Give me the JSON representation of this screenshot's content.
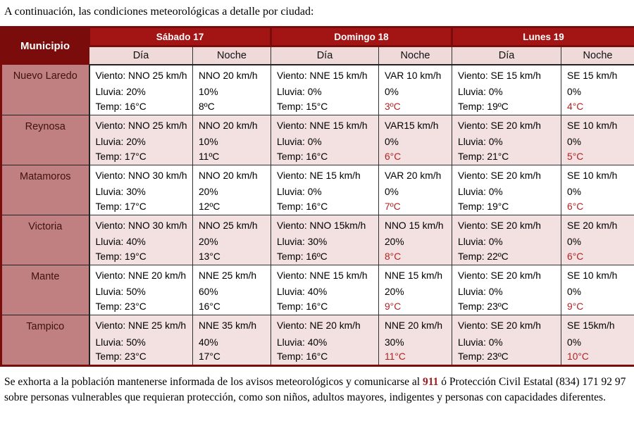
{
  "title": "A continuación, las condiciones meteorológicas a detalle por ciudad:",
  "colors": {
    "dark_red": "#7a0c0c",
    "band_red": "#a31515",
    "subheader_pink": "#efd9d9",
    "muni_rose": "#c08081",
    "zebra_pink": "#f3e0e0",
    "temp_red": "#b22222",
    "emergency_red": "#9e1b1b",
    "grid": "#333333"
  },
  "table": {
    "municipio_header": "Municipio",
    "day_headers": [
      "Sábado 17",
      "Domingo 18",
      "Lunes 19"
    ],
    "subheaders": [
      "Día",
      "Noche"
    ],
    "rows": [
      {
        "municipio": "Nuevo Laredo",
        "cells": [
          {
            "lines": [
              "Viento: NNO 25 km/h",
              "Lluvia: 20%",
              "Temp: 16°C"
            ],
            "temp_red": false
          },
          {
            "lines": [
              "NNO 20 km/h",
              "10%",
              "8ºC"
            ],
            "temp_red": false
          },
          {
            "lines": [
              "Viento: NNE 15 km/h",
              "Lluvia: 0%",
              "Temp: 15°C"
            ],
            "temp_red": false
          },
          {
            "lines": [
              "VAR 10 km/h",
              "0%",
              "3ºC"
            ],
            "temp_red": true
          },
          {
            "lines": [
              "Viento: SE 15 km/h",
              "Lluvia: 0%",
              "Temp: 19ºC"
            ],
            "temp_red": false
          },
          {
            "lines": [
              "SE 15 km/h",
              "0%",
              "4°C"
            ],
            "temp_red": true
          }
        ]
      },
      {
        "municipio": "Reynosa",
        "cells": [
          {
            "lines": [
              "Viento: NNO 25 km/h",
              "Lluvia: 20%",
              "Temp: 17°C"
            ],
            "temp_red": false
          },
          {
            "lines": [
              "NNO 20 km/h",
              "10%",
              "11ºC"
            ],
            "temp_red": false
          },
          {
            "lines": [
              "Viento: NNE 15 km/h",
              "Lluvia: 0%",
              "Temp: 16°C"
            ],
            "temp_red": false
          },
          {
            "lines": [
              "VAR15 km/h",
              "0%",
              "6°C"
            ],
            "temp_red": true
          },
          {
            "lines": [
              "Viento: SE 20 km/h",
              "Lluvia: 0%",
              "Temp: 21°C"
            ],
            "temp_red": false
          },
          {
            "lines": [
              "SE 10 km/h",
              "0%",
              "5°C"
            ],
            "temp_red": true
          }
        ]
      },
      {
        "municipio": "Matamoros",
        "cells": [
          {
            "lines": [
              "Viento: NNO 30 km/h",
              "Lluvia: 30%",
              "Temp: 17°C"
            ],
            "temp_red": false
          },
          {
            "lines": [
              "NNO 20 km/h",
              "20%",
              "12ºC"
            ],
            "temp_red": false
          },
          {
            "lines": [
              "Viento: NE 15 km/h",
              "Lluvia: 0%",
              "Temp: 16°C"
            ],
            "temp_red": false
          },
          {
            "lines": [
              "VAR 20 km/h",
              "0%",
              "7ºC"
            ],
            "temp_red": true
          },
          {
            "lines": [
              "Viento: SE 20 km/h",
              "Lluvia: 0%",
              "Temp: 19°C"
            ],
            "temp_red": false
          },
          {
            "lines": [
              "SE 10 km/h",
              "0%",
              "6°C"
            ],
            "temp_red": true
          }
        ]
      },
      {
        "municipio": "Victoria",
        "cells": [
          {
            "lines": [
              "Viento: NNO 30 km/h",
              "Lluvia: 40%",
              "Temp: 19°C"
            ],
            "temp_red": false
          },
          {
            "lines": [
              "NNO 25 km/h",
              "20%",
              "13°C"
            ],
            "temp_red": false
          },
          {
            "lines": [
              "Viento: NNO 15km/h",
              "Lluvia: 30%",
              "Temp: 16ºC"
            ],
            "temp_red": false
          },
          {
            "lines": [
              "NNO 15 km/h",
              "20%",
              "8°C"
            ],
            "temp_red": true
          },
          {
            "lines": [
              "Viento: SE 20 km/h",
              "Lluvia: 0%",
              "Temp: 22ºC"
            ],
            "temp_red": false
          },
          {
            "lines": [
              "SE 20 km/h",
              "0%",
              "6°C"
            ],
            "temp_red": true
          }
        ]
      },
      {
        "municipio": "Mante",
        "cells": [
          {
            "lines": [
              "Viento: NNE 20 km/h",
              "Lluvia: 50%",
              "Temp: 23°C"
            ],
            "temp_red": false
          },
          {
            "lines": [
              "NNE 25 km/h",
              "60%",
              "16°C"
            ],
            "temp_red": false
          },
          {
            "lines": [
              "Viento: NNE 15 km/h",
              "Lluvia: 40%",
              "Temp: 16°C"
            ],
            "temp_red": false
          },
          {
            "lines": [
              "NNE 15 km/h",
              "20%",
              "9°C"
            ],
            "temp_red": true
          },
          {
            "lines": [
              "Viento: SE 20 km/h",
              "Lluvia: 0%",
              "Temp: 23ºC"
            ],
            "temp_red": false
          },
          {
            "lines": [
              "SE 10 km/h",
              "0%",
              "9°C"
            ],
            "temp_red": true
          }
        ]
      },
      {
        "municipio": "Tampico",
        "cells": [
          {
            "lines": [
              "Viento: NNE 25 km/h",
              "Lluvia: 50%",
              "Temp: 23°C"
            ],
            "temp_red": false
          },
          {
            "lines": [
              "NNE 35 km/h",
              "40%",
              "17°C"
            ],
            "temp_red": false
          },
          {
            "lines": [
              "Viento: NE 20 km/h",
              "Lluvia: 40%",
              "Temp: 16°C"
            ],
            "temp_red": false
          },
          {
            "lines": [
              "NNE 20 km/h",
              "30%",
              "11°C"
            ],
            "temp_red": true
          },
          {
            "lines": [
              "Viento: SE 20 km/h",
              "Lluvia: 0%",
              "Temp: 23ºC"
            ],
            "temp_red": false
          },
          {
            "lines": [
              "SE 15km/h",
              "0%",
              "10°C"
            ],
            "temp_red": true
          }
        ]
      }
    ]
  },
  "footer": {
    "text_before": "Se exhorta a la población mantenerse informada de los avisos meteorológicos y comunicarse al ",
    "emergency_number": "911",
    "text_after": " ó Protección Civil Estatal (834) 171 92 97 sobre personas vulnerables que requieran protección, como son niños, adultos mayores, indigentes y personas con capacidades diferentes."
  }
}
